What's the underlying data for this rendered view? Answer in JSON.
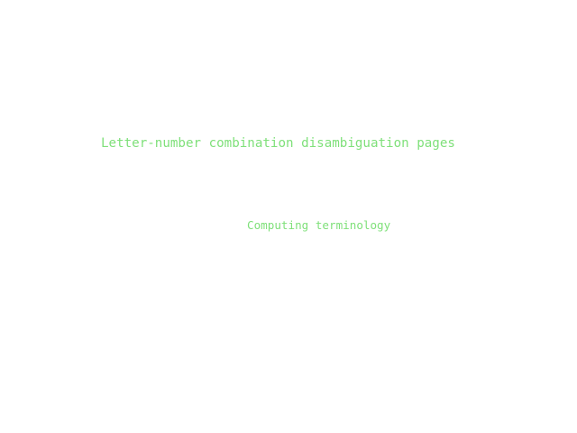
{
  "text_lines": {
    "line1": "Letter-number combination disambiguation pages",
    "line2": "Computing terminology"
  },
  "colors": {
    "background": "#ffffff",
    "text": "#7fe07a"
  }
}
